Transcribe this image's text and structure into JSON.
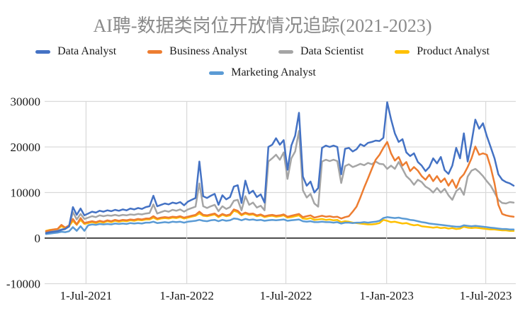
{
  "title": "AI聘-数据类岗位开放情况追踪(2021-2023)",
  "chart_data": {
    "type": "line",
    "title": "AI聘-数据类岗位开放情况追踪(2021-2023)",
    "x_start_date": "2021-04-19",
    "x_step_days": 7,
    "n_points": 123,
    "x_axis_tick_labels": [
      "1-Jul-2021",
      "1-Jan-2022",
      "1-Jul-2022",
      "1-Jan-2023",
      "1-Jul-2023"
    ],
    "x_axis_tick_dates": [
      "2021-07-01",
      "2022-01-01",
      "2022-07-01",
      "2023-01-01",
      "2023-07-01"
    ],
    "y_axis_ticks": [
      30000,
      20000,
      10000,
      0,
      -10000
    ],
    "ylim": [
      -10000,
      30000
    ],
    "grid": true,
    "legend_position": "top",
    "grid_color": "#d9d9d9",
    "zero_line_color": "#4d4d4d",
    "draw_order": [
      2,
      3,
      4,
      1,
      0
    ],
    "series": [
      {
        "name": "Data Analyst",
        "color": "#4472C4",
        "values": [
          1100,
          1300,
          1400,
          1500,
          1800,
          2000,
          2600,
          6800,
          5100,
          6500,
          5000,
          5400,
          5800,
          5600,
          6000,
          5800,
          6100,
          5900,
          6200,
          6000,
          6300,
          6100,
          6500,
          6300,
          6600,
          6400,
          6800,
          7000,
          9300,
          7000,
          7300,
          7600,
          7400,
          7800,
          7600,
          7900,
          7200,
          8000,
          8400,
          8800,
          16800,
          9200,
          8800,
          9300,
          9700,
          7300,
          9400,
          8500,
          9000,
          11300,
          11600,
          7700,
          12600,
          9800,
          10400,
          9000,
          9600,
          7800,
          20000,
          20500,
          21900,
          20500,
          21500,
          15000,
          20300,
          22500,
          27500,
          13500,
          11500,
          12400,
          10000,
          11000,
          19800,
          20300,
          20000,
          20300,
          20000,
          14000,
          19600,
          19800,
          19000,
          19500,
          20600,
          20200,
          20900,
          21100,
          21400,
          21300,
          22000,
          29800,
          26100,
          23000,
          21100,
          21700,
          18800,
          18000,
          18600,
          16700,
          15900,
          14700,
          15600,
          17500,
          16400,
          17800,
          14900,
          14100,
          15900,
          19800,
          17500,
          23000,
          16800,
          21000,
          26000,
          24000,
          25200,
          22400,
          20000,
          17500,
          14000,
          12800,
          12300,
          12000,
          11500
        ]
      },
      {
        "name": "Business Analyst",
        "color": "#ED7D31",
        "values": [
          1500,
          1700,
          1900,
          2000,
          2900,
          2300,
          2800,
          4200,
          3000,
          4400,
          3300,
          3500,
          3700,
          3500,
          3800,
          3600,
          3900,
          3700,
          4000,
          3800,
          4000,
          3900,
          4100,
          4000,
          4200,
          4100,
          4300,
          4300,
          4800,
          4300,
          4500,
          4600,
          4500,
          4700,
          4600,
          4800,
          4500,
          4700,
          4900,
          5100,
          5800,
          5100,
          5000,
          5200,
          5400,
          4800,
          5300,
          5000,
          5200,
          6300,
          6000,
          5200,
          5600,
          5300,
          5400,
          5000,
          5200,
          4800,
          5000,
          5100,
          4900,
          5000,
          5200,
          4700,
          4900,
          5100,
          5300,
          4600,
          4800,
          5000,
          4500,
          4700,
          4900,
          4700,
          4800,
          4600,
          4700,
          4300,
          4600,
          4800,
          5800,
          6900,
          8900,
          11100,
          13100,
          15200,
          17200,
          18300,
          19800,
          21100,
          18600,
          17000,
          17800,
          15900,
          16700,
          14700,
          15600,
          14800,
          13600,
          12800,
          13900,
          12500,
          13600,
          12300,
          13100,
          11500,
          12800,
          11000,
          13100,
          14000,
          15600,
          17500,
          20100,
          18300,
          18600,
          18300,
          15600,
          12000,
          7300,
          5300,
          5000,
          4800,
          4700
        ]
      },
      {
        "name": "Data Scientist",
        "color": "#A5A5A5",
        "values": [
          1300,
          1500,
          1600,
          1700,
          1900,
          2100,
          2500,
          5700,
          4100,
          5300,
          4200,
          4500,
          4800,
          4600,
          5000,
          4800,
          5000,
          4900,
          5100,
          4900,
          5100,
          5000,
          5200,
          5100,
          5300,
          5200,
          5400,
          5500,
          7400,
          5400,
          5700,
          6000,
          5800,
          6200,
          6000,
          6300,
          5800,
          6300,
          6600,
          6900,
          12000,
          7000,
          6600,
          7000,
          7300,
          5900,
          7000,
          6400,
          6800,
          8200,
          8400,
          6100,
          9200,
          7300,
          7800,
          6700,
          7100,
          6100,
          16800,
          17500,
          18300,
          17200,
          18800,
          13000,
          17500,
          19000,
          23500,
          10500,
          8900,
          9700,
          7600,
          6900,
          16800,
          17200,
          16900,
          17200,
          16900,
          12100,
          15800,
          16200,
          15600,
          15900,
          16300,
          16000,
          16500,
          16200,
          16800,
          16300,
          16200,
          15200,
          15900,
          15200,
          16700,
          15200,
          13600,
          12800,
          11700,
          12800,
          12300,
          11300,
          10800,
          10000,
          11000,
          10000,
          10800,
          9400,
          8400,
          10300,
          11000,
          9500,
          13500,
          14800,
          15200,
          14500,
          13600,
          12500,
          11500,
          10000,
          8400,
          7700,
          7600,
          7900,
          7800
        ]
      },
      {
        "name": "Product Analyst",
        "color": "#FFC000",
        "values": [
          1600,
          1800,
          1900,
          2000,
          2600,
          2200,
          2600,
          3800,
          2900,
          4000,
          3100,
          3300,
          3500,
          3300,
          3600,
          3400,
          3700,
          3500,
          3800,
          3600,
          3800,
          3700,
          3900,
          3800,
          4000,
          3900,
          4100,
          4100,
          4500,
          4100,
          4300,
          4400,
          4300,
          4500,
          4400,
          4600,
          4300,
          4500,
          4700,
          4900,
          5400,
          4900,
          4800,
          5000,
          5200,
          4600,
          5100,
          4800,
          5000,
          6000,
          5700,
          5000,
          5400,
          5100,
          5200,
          4800,
          5000,
          4600,
          4800,
          4900,
          4700,
          4800,
          5000,
          4500,
          4600,
          4800,
          5000,
          4300,
          4200,
          4400,
          4000,
          4100,
          4200,
          4000,
          4100,
          3900,
          4000,
          3500,
          3700,
          3600,
          3400,
          3300,
          3200,
          3100,
          3000,
          3000,
          3100,
          3300,
          4000,
          3800,
          3500,
          3600,
          3400,
          3200,
          3300,
          3000,
          2800,
          2900,
          2600,
          2500,
          2400,
          2300,
          2400,
          2200,
          2300,
          2100,
          2200,
          2000,
          2100,
          2500,
          2300,
          2200,
          2300,
          2200,
          2100,
          2000,
          1900,
          1900,
          1800,
          1700,
          1700,
          1600,
          1600
        ]
      },
      {
        "name": "Marketing Analyst",
        "color": "#5B9BD5",
        "values": [
          900,
          1000,
          1100,
          1200,
          1400,
          1300,
          1500,
          2400,
          1600,
          2600,
          1600,
          2800,
          3000,
          2900,
          3100,
          3000,
          3100,
          3000,
          3200,
          3100,
          3200,
          3100,
          3300,
          3200,
          3300,
          3200,
          3400,
          3400,
          3600,
          3300,
          3400,
          3500,
          3400,
          3600,
          3500,
          3600,
          3400,
          3600,
          3700,
          3800,
          4000,
          3800,
          3700,
          3900,
          4000,
          3700,
          4000,
          3800,
          3900,
          4300,
          4200,
          3900,
          4200,
          4000,
          4100,
          3900,
          4000,
          3800,
          3900,
          4000,
          3900,
          4000,
          4100,
          3800,
          3900,
          4000,
          4100,
          3700,
          3600,
          3700,
          3500,
          3500,
          3600,
          3500,
          3500,
          3400,
          3500,
          3200,
          3400,
          3400,
          3300,
          3400,
          3400,
          3500,
          3400,
          3500,
          3600,
          3800,
          4400,
          4600,
          4500,
          4400,
          4500,
          4300,
          4200,
          4000,
          3900,
          3700,
          3500,
          3400,
          3200,
          3100,
          3000,
          2900,
          2800,
          2700,
          2600,
          2500,
          2500,
          2800,
          2700,
          2600,
          2700,
          2600,
          2500,
          2400,
          2300,
          2200,
          2100,
          2000,
          2000,
          1900,
          1900
        ]
      }
    ]
  }
}
